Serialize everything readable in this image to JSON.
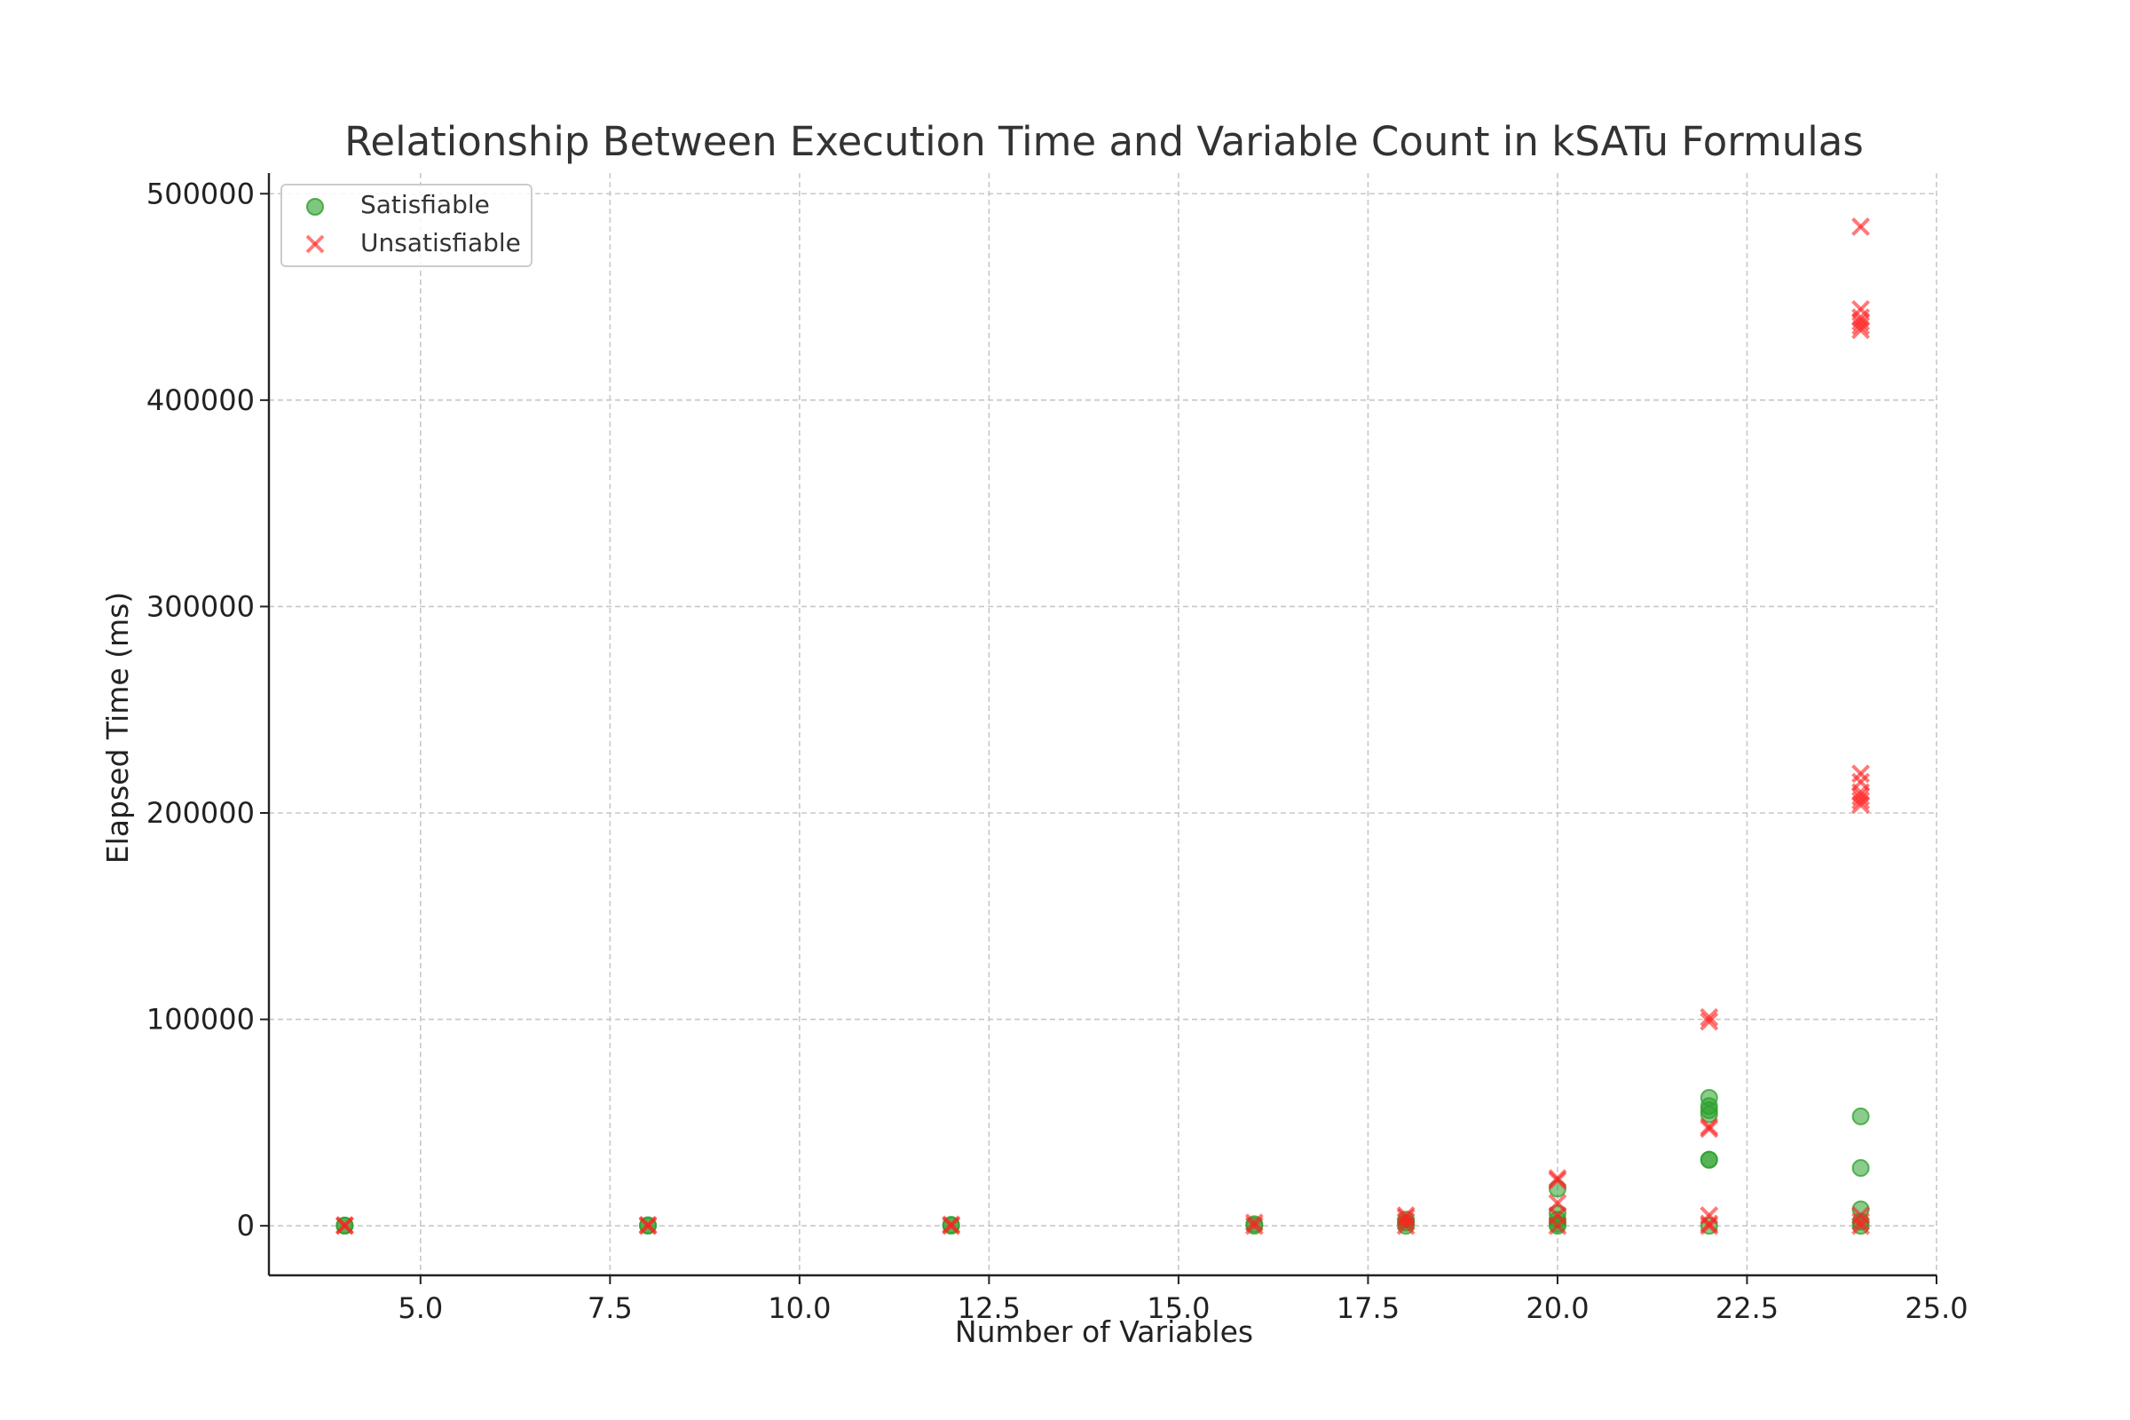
{
  "chart_data": {
    "type": "scatter",
    "title": "Relationship Between Execution Time and Variable Count in kSATu Formulas",
    "xlabel": "Number of Variables",
    "ylabel": "Elapsed Time (ms)",
    "xlim": [
      3.0,
      25.0
    ],
    "ylim": [
      -24000,
      510000
    ],
    "xticks": [
      "5.0",
      "7.5",
      "10.0",
      "12.5",
      "15.0",
      "17.5",
      "20.0",
      "22.5",
      "25.0"
    ],
    "yticks": [
      "0",
      "100000",
      "200000",
      "300000",
      "400000",
      "500000"
    ],
    "grid": true,
    "legend_position": "top-left",
    "series": [
      {
        "name": "Satisfiable",
        "marker": "circle",
        "color": "#2ca02c",
        "points": [
          [
            4,
            0
          ],
          [
            4,
            200
          ],
          [
            8,
            0
          ],
          [
            8,
            300
          ],
          [
            12,
            0
          ],
          [
            12,
            500
          ],
          [
            16,
            0
          ],
          [
            16,
            800
          ],
          [
            18,
            0
          ],
          [
            18,
            1500
          ],
          [
            18,
            3000
          ],
          [
            20,
            0
          ],
          [
            20,
            1000
          ],
          [
            20,
            3000
          ],
          [
            20,
            6000
          ],
          [
            20,
            18000
          ],
          [
            22,
            0
          ],
          [
            22,
            32000
          ],
          [
            22,
            32000
          ],
          [
            22,
            54000
          ],
          [
            22,
            56000
          ],
          [
            22,
            58000
          ],
          [
            22,
            62000
          ],
          [
            24,
            0
          ],
          [
            24,
            2000
          ],
          [
            24,
            8000
          ],
          [
            24,
            28000
          ],
          [
            24,
            53000
          ]
        ]
      },
      {
        "name": "Unsatisfiable",
        "marker": "x",
        "color": "#ff2020",
        "points": [
          [
            4,
            0
          ],
          [
            4,
            300
          ],
          [
            8,
            0
          ],
          [
            8,
            400
          ],
          [
            12,
            0
          ],
          [
            12,
            600
          ],
          [
            16,
            0
          ],
          [
            16,
            1500
          ],
          [
            18,
            0
          ],
          [
            18,
            2000
          ],
          [
            18,
            4000
          ],
          [
            18,
            5000
          ],
          [
            20,
            0
          ],
          [
            20,
            5000
          ],
          [
            20,
            11000
          ],
          [
            20,
            22000
          ],
          [
            20,
            23000
          ],
          [
            22,
            0
          ],
          [
            22,
            1000
          ],
          [
            22,
            5000
          ],
          [
            22,
            47000
          ],
          [
            22,
            48000
          ],
          [
            22,
            99000
          ],
          [
            22,
            101000
          ],
          [
            24,
            0
          ],
          [
            24,
            2000
          ],
          [
            24,
            5000
          ],
          [
            24,
            204000
          ],
          [
            24,
            206000
          ],
          [
            24,
            208000
          ],
          [
            24,
            210000
          ],
          [
            24,
            215000
          ],
          [
            24,
            219000
          ],
          [
            24,
            434000
          ],
          [
            24,
            436000
          ],
          [
            24,
            438000
          ],
          [
            24,
            440000
          ],
          [
            24,
            444000
          ],
          [
            24,
            484000
          ]
        ]
      }
    ]
  }
}
